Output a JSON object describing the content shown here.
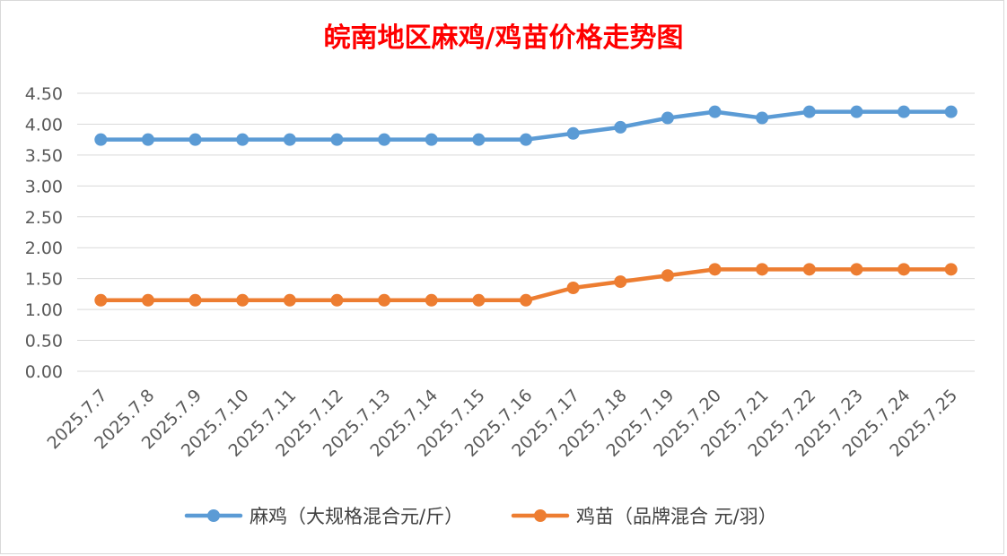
{
  "chart_data": {
    "type": "line",
    "title": "皖南地区麻鸡/鸡苗价格走势图",
    "categories": [
      "2025.7.7",
      "2025.7.8",
      "2025.7.9",
      "2025.7.10",
      "2025.7.11",
      "2025.7.12",
      "2025.7.13",
      "2025.7.14",
      "2025.7.15",
      "2025.7.16",
      "2025.7.17",
      "2025.7.18",
      "2025.7.19",
      "2025.7.20",
      "2025.7.21",
      "2025.7.22",
      "2025.7.23",
      "2025.7.24",
      "2025.7.25"
    ],
    "y_ticks": [
      "0.00",
      "0.50",
      "1.00",
      "1.50",
      "2.00",
      "2.50",
      "3.00",
      "3.50",
      "4.00",
      "4.50"
    ],
    "ylim": [
      0,
      4.5
    ],
    "grid": true,
    "legend_position": "bottom",
    "series": [
      {
        "name": "麻鸡（大规格混合元/斤）",
        "color": "#5b9bd5",
        "values": [
          3.75,
          3.75,
          3.75,
          3.75,
          3.75,
          3.75,
          3.75,
          3.75,
          3.75,
          3.75,
          3.85,
          3.95,
          4.1,
          4.2,
          4.1,
          4.2,
          4.2,
          4.2,
          4.2
        ]
      },
      {
        "name": "鸡苗（品牌混合 元/羽）",
        "color": "#ed7d31",
        "values": [
          1.15,
          1.15,
          1.15,
          1.15,
          1.15,
          1.15,
          1.15,
          1.15,
          1.15,
          1.15,
          1.35,
          1.45,
          1.55,
          1.65,
          1.65,
          1.65,
          1.65,
          1.65,
          1.65
        ]
      }
    ]
  }
}
